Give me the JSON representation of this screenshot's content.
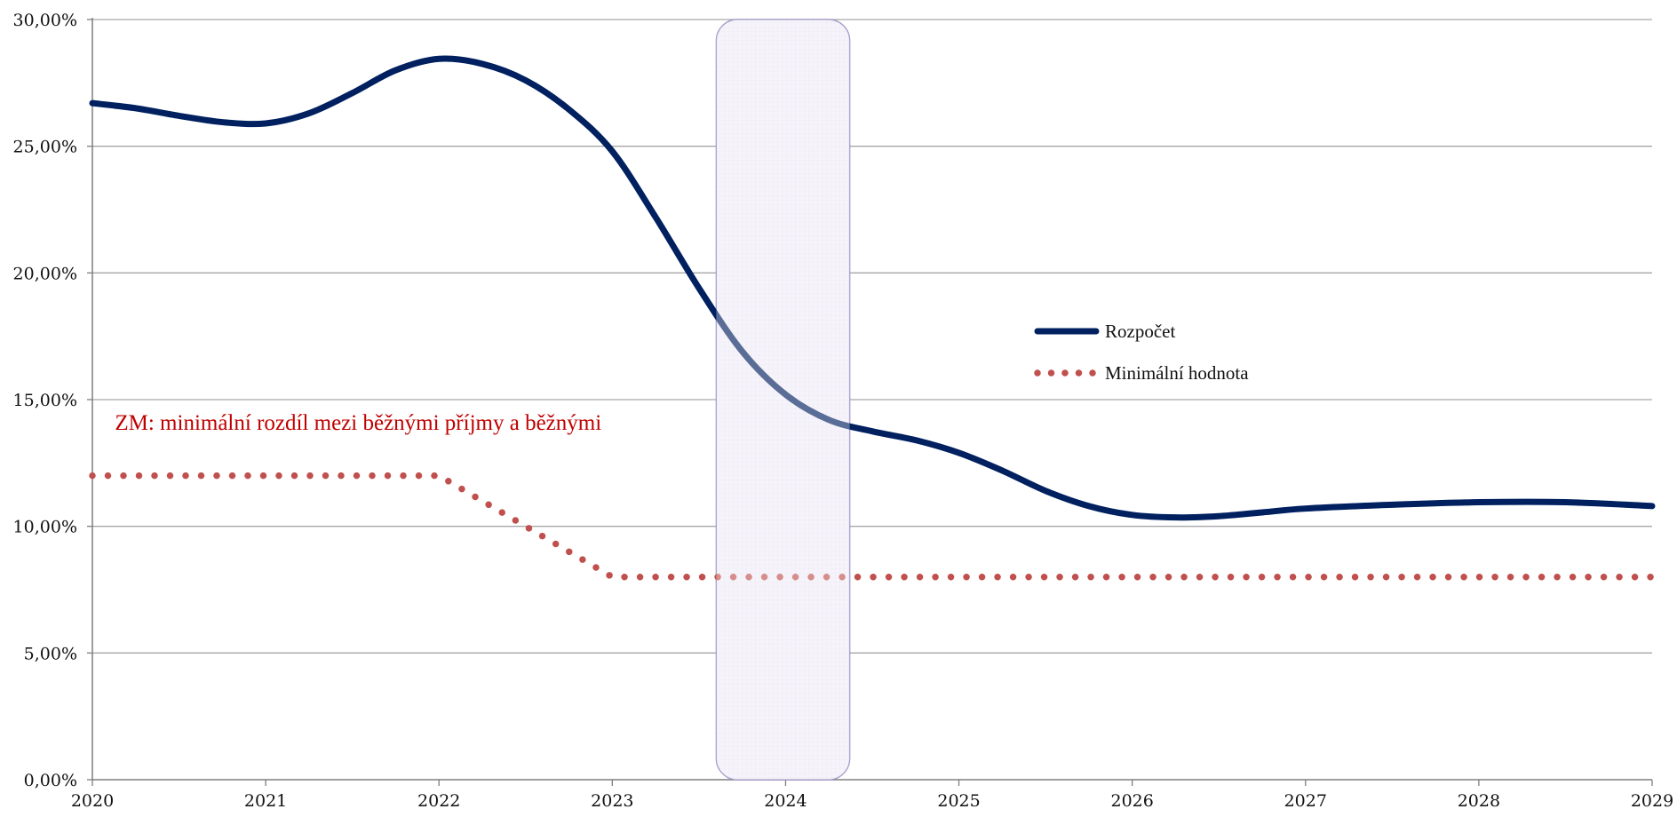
{
  "chart_data": {
    "type": "line",
    "title": "",
    "xlabel": "",
    "ylabel": "",
    "xlim": [
      2020,
      2029
    ],
    "ylim": [
      0,
      30
    ],
    "x_ticks": [
      "2020",
      "2021",
      "2022",
      "2023",
      "2024",
      "2025",
      "2026",
      "2027",
      "2028",
      "2029"
    ],
    "y_ticks": [
      "0,00%",
      "5,00%",
      "10,00%",
      "15,00%",
      "20,00%",
      "25,00%",
      "30,00%"
    ],
    "grid": "horizontal",
    "legend_position": "center-right",
    "series": [
      {
        "name": "Rozpočet",
        "style": "solid",
        "color": "#002060",
        "points": [
          [
            2020.0,
            26.7
          ],
          [
            2020.25,
            26.5
          ],
          [
            2020.5,
            26.2
          ],
          [
            2020.75,
            25.95
          ],
          [
            2021.0,
            25.9
          ],
          [
            2021.25,
            26.3
          ],
          [
            2021.5,
            27.1
          ],
          [
            2021.75,
            28.0
          ],
          [
            2022.0,
            28.45
          ],
          [
            2022.25,
            28.25
          ],
          [
            2022.5,
            27.6
          ],
          [
            2022.75,
            26.45
          ],
          [
            2023.0,
            24.8
          ],
          [
            2023.25,
            22.2
          ],
          [
            2023.5,
            19.4
          ],
          [
            2023.75,
            16.9
          ],
          [
            2024.0,
            15.2
          ],
          [
            2024.25,
            14.2
          ],
          [
            2024.5,
            13.75
          ],
          [
            2024.75,
            13.4
          ],
          [
            2025.0,
            12.9
          ],
          [
            2025.25,
            12.2
          ],
          [
            2025.5,
            11.4
          ],
          [
            2025.75,
            10.8
          ],
          [
            2026.0,
            10.45
          ],
          [
            2026.25,
            10.35
          ],
          [
            2026.5,
            10.4
          ],
          [
            2026.75,
            10.55
          ],
          [
            2027.0,
            10.7
          ],
          [
            2027.5,
            10.85
          ],
          [
            2028.0,
            10.95
          ],
          [
            2028.5,
            10.95
          ],
          [
            2029.0,
            10.8
          ]
        ]
      },
      {
        "name": "Minimální hodnota",
        "style": "dotted",
        "color": "#c0504d",
        "points": [
          [
            2020.0,
            12.0
          ],
          [
            2022.0,
            12.0
          ],
          [
            2023.0,
            8.0
          ],
          [
            2029.0,
            8.0
          ]
        ]
      }
    ],
    "highlight_band": {
      "x_range": [
        2023.6,
        2024.37
      ],
      "y_range": [
        0,
        30
      ],
      "fill": "#ebe7f5",
      "stroke": "#9a8fc3"
    },
    "annotations": [
      {
        "text": "ZM: minimální rozdíl mezi běžnými příjmy a běžnými",
        "x": 2020.13,
        "y": 13.8,
        "color": "#c00000"
      }
    ]
  }
}
